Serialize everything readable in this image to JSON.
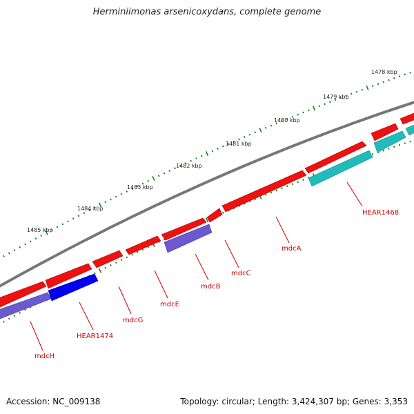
{
  "title": "Herminiimonas arsenicoxydans, complete genome",
  "footer": {
    "accession": "Accession: NC_009138",
    "topology": "Topology: circular; Length: 3,424,307 bp; Genes: 3,353"
  },
  "kbp_labels": [
    "1485 kbp",
    "1484 kbp",
    "1483 kbp",
    "1482 kbp",
    "1481 kbp",
    "1480 kbp",
    "1479 kbp",
    "1478 kbp"
  ],
  "gene_labels": [
    "mdcH",
    "HEAR1474",
    "mdcG",
    "mdcE",
    "mdcB",
    "mdcC",
    "mdcA",
    "HEAR1468"
  ],
  "colors": {
    "backbone": "#777777",
    "forward_gene": "#ee1111",
    "reverse_gene_blue": "#0000ee",
    "reverse_gene_purple": "#6a5acd",
    "reverse_gene_cyan": "#22bbbb",
    "tick": "#118811",
    "label": "#cc0000"
  }
}
